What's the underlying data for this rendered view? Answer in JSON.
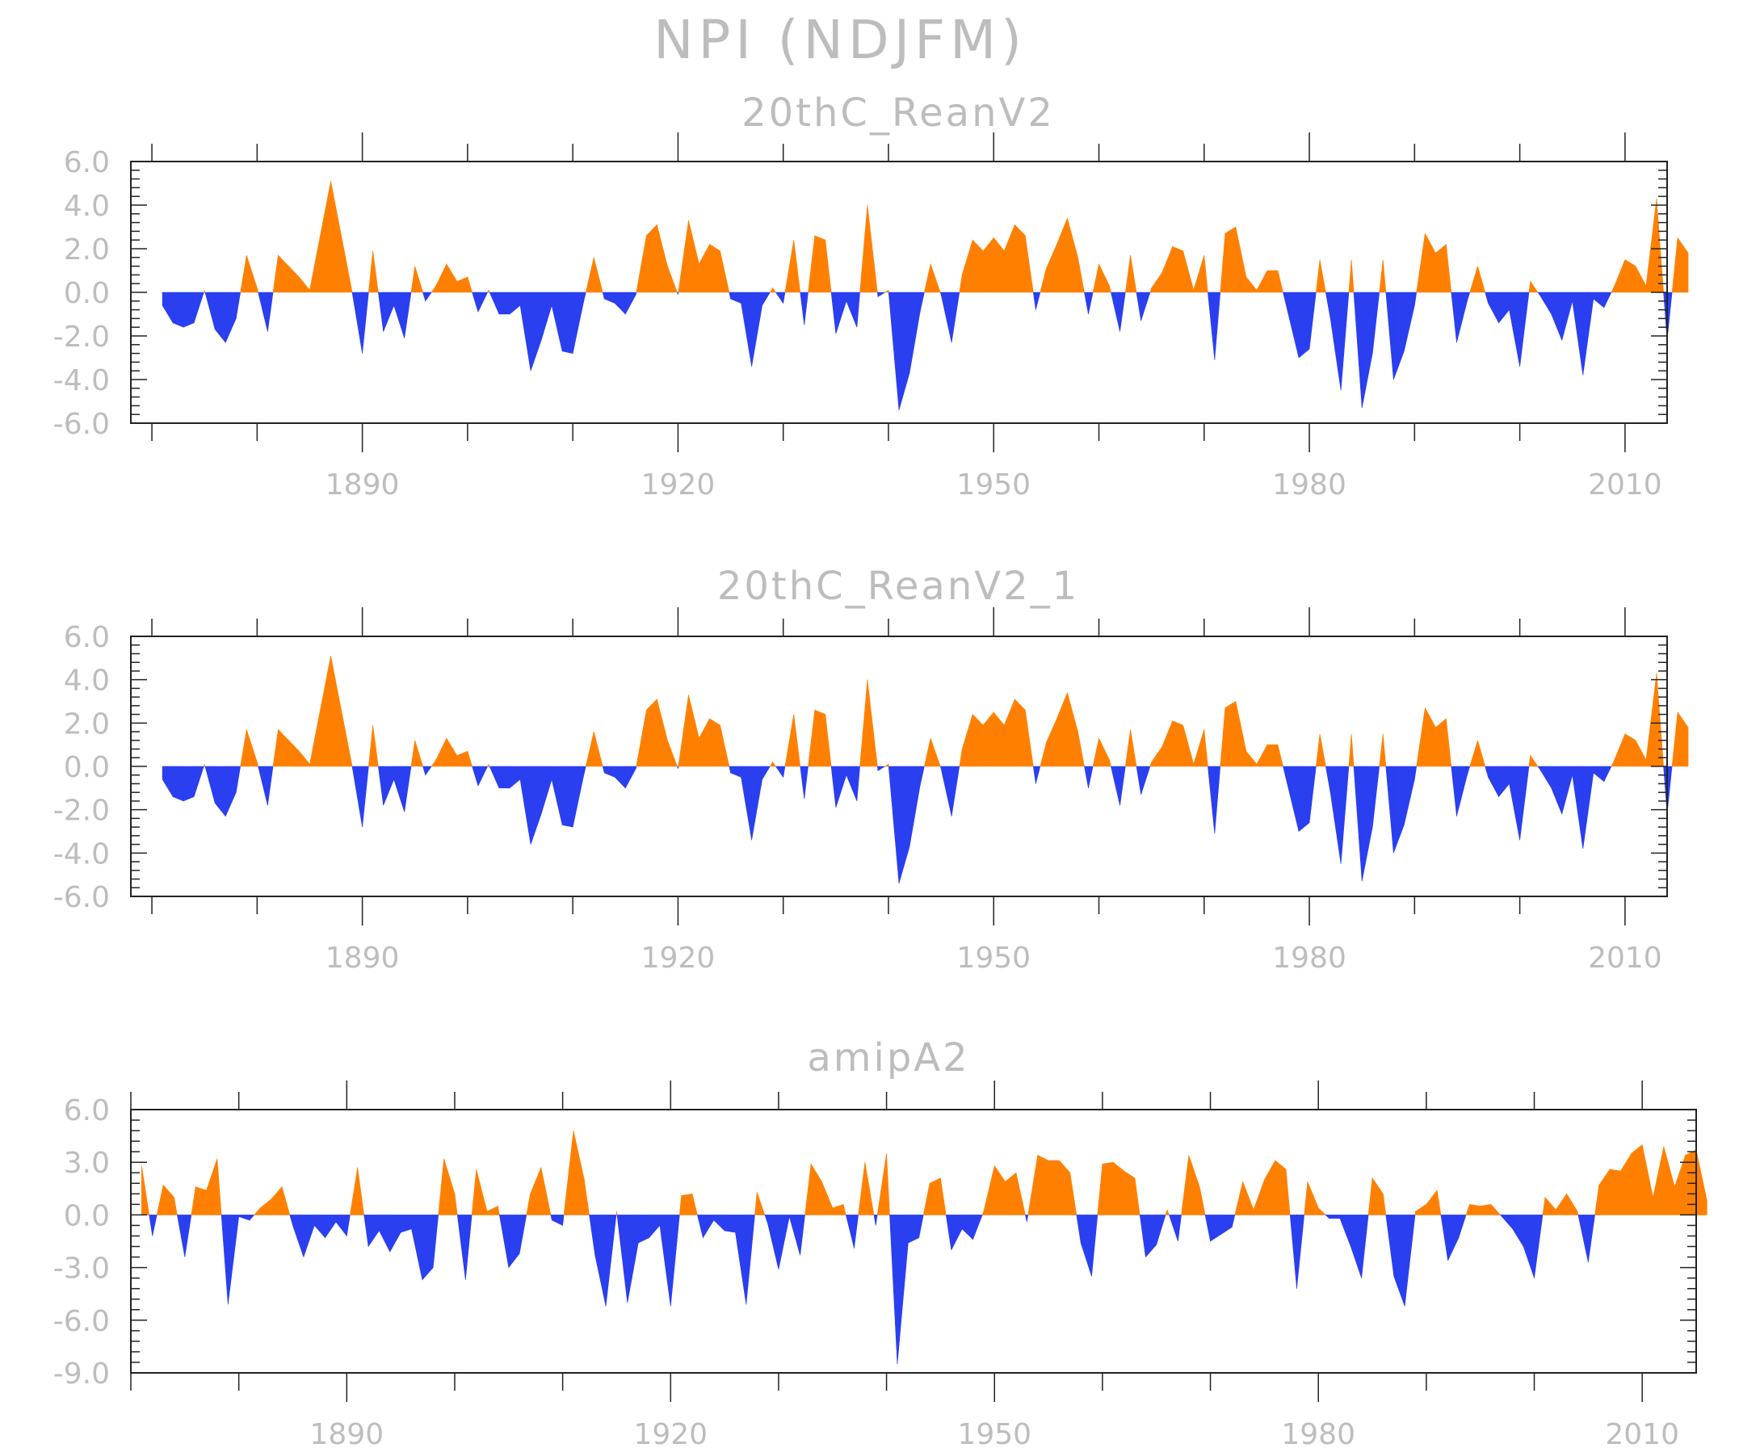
{
  "figure": {
    "title": "NPI (NDJFM)",
    "colors": {
      "positive": "#ff8000",
      "negative": "#2a3ff0",
      "text": "#bdbdbd",
      "axis": "#222222"
    }
  },
  "chart_data": [
    {
      "type": "area",
      "title": "20thC_ReanV2",
      "x_start": 1871,
      "xlim": [
        1868,
        2014
      ],
      "ylim": [
        -6,
        6
      ],
      "y_ticks": [
        6,
        4,
        2,
        0,
        -2,
        -4,
        -6
      ],
      "y_tick_labels": [
        "6.0",
        "4.0",
        "2.0",
        "0.0",
        "-2.0",
        "-4.0",
        "-6.0"
      ],
      "x_ticks": [
        1890,
        1920,
        1950,
        1980,
        2010
      ],
      "x_tick_labels": [
        "1890",
        "1920",
        "1950",
        "1980",
        "2010"
      ],
      "values": [
        -0.6,
        -1.4,
        -1.6,
        -1.4,
        0.1,
        -1.7,
        -2.3,
        -1.2,
        1.7,
        0.2,
        -1.8,
        1.7,
        1.2,
        0.7,
        0.1,
        2.6,
        5.1,
        2.6,
        0.1,
        -2.8,
        1.9,
        -1.8,
        -0.6,
        -2.1,
        1.2,
        -0.4,
        0.3,
        1.3,
        0.5,
        0.7,
        -0.9,
        0.1,
        -1.0,
        -1.0,
        -0.6,
        -3.6,
        -2.2,
        -0.6,
        -2.7,
        -2.8,
        -0.5,
        1.6,
        -0.3,
        -0.5,
        -1.0,
        -0.1,
        2.6,
        3.1,
        1.2,
        -0.1,
        3.3,
        1.3,
        2.2,
        1.9,
        -0.3,
        -0.5,
        -3.4,
        -0.6,
        0.2,
        -0.5,
        2.4,
        -1.5,
        2.6,
        2.4,
        -1.9,
        -0.4,
        -1.6,
        4.0,
        -0.2,
        0.1,
        -5.4,
        -3.7,
        -0.9,
        1.3,
        -0.1,
        -2.3,
        0.8,
        2.4,
        1.9,
        2.5,
        1.9,
        3.1,
        2.6,
        -0.8,
        1.1,
        2.2,
        3.4,
        1.6,
        -1.0,
        1.3,
        0.3,
        -1.8,
        1.7,
        -1.3,
        0.2,
        0.9,
        2.1,
        1.9,
        0.1,
        1.7,
        -3.1,
        2.7,
        3.0,
        0.7,
        0.1,
        1.0,
        1.0,
        -1.0,
        -3.0,
        -2.6,
        1.5,
        -1.2,
        -4.5,
        1.5,
        -5.3,
        -2.8,
        1.5,
        -4.0,
        -2.7,
        -0.6,
        2.7,
        1.8,
        2.2,
        -2.3,
        -0.4,
        1.2,
        -0.5,
        -1.4,
        -0.8,
        -3.4,
        0.5,
        -0.2,
        -1.0,
        -2.2,
        -0.4,
        -3.8,
        -0.3,
        -0.7,
        0.3,
        1.5,
        1.2,
        0.3,
        4.3,
        -2.2,
        2.5,
        1.8
      ]
    },
    {
      "type": "area",
      "title": "20thC_ReanV2_1",
      "x_start": 1871,
      "xlim": [
        1868,
        2014
      ],
      "ylim": [
        -6,
        6
      ],
      "y_ticks": [
        6,
        4,
        2,
        0,
        -2,
        -4,
        -6
      ],
      "y_tick_labels": [
        "6.0",
        "4.0",
        "2.0",
        "0.0",
        "-2.0",
        "-4.0",
        "-6.0"
      ],
      "x_ticks": [
        1890,
        1920,
        1950,
        1980,
        2010
      ],
      "x_tick_labels": [
        "1890",
        "1920",
        "1950",
        "1980",
        "2010"
      ],
      "values": [
        -0.6,
        -1.4,
        -1.6,
        -1.4,
        0.1,
        -1.7,
        -2.3,
        -1.2,
        1.7,
        0.2,
        -1.8,
        1.7,
        1.2,
        0.7,
        0.1,
        2.6,
        5.1,
        2.6,
        0.1,
        -2.8,
        1.9,
        -1.8,
        -0.6,
        -2.1,
        1.2,
        -0.4,
        0.3,
        1.3,
        0.5,
        0.7,
        -0.9,
        0.1,
        -1.0,
        -1.0,
        -0.6,
        -3.6,
        -2.2,
        -0.6,
        -2.7,
        -2.8,
        -0.5,
        1.6,
        -0.3,
        -0.5,
        -1.0,
        -0.1,
        2.6,
        3.1,
        1.2,
        -0.1,
        3.3,
        1.3,
        2.2,
        1.9,
        -0.3,
        -0.5,
        -3.4,
        -0.6,
        0.2,
        -0.5,
        2.4,
        -1.5,
        2.6,
        2.4,
        -1.9,
        -0.4,
        -1.6,
        4.0,
        -0.2,
        0.1,
        -5.4,
        -3.7,
        -0.9,
        1.3,
        -0.1,
        -2.3,
        0.8,
        2.4,
        1.9,
        2.5,
        1.9,
        3.1,
        2.6,
        -0.8,
        1.1,
        2.2,
        3.4,
        1.6,
        -1.0,
        1.3,
        0.3,
        -1.8,
        1.7,
        -1.3,
        0.2,
        0.9,
        2.1,
        1.9,
        0.1,
        1.7,
        -3.1,
        2.7,
        3.0,
        0.7,
        0.1,
        1.0,
        1.0,
        -1.0,
        -3.0,
        -2.6,
        1.5,
        -1.2,
        -4.5,
        1.5,
        -5.3,
        -2.8,
        1.5,
        -4.0,
        -2.7,
        -0.6,
        2.7,
        1.8,
        2.2,
        -2.3,
        -0.4,
        1.2,
        -0.5,
        -1.4,
        -0.8,
        -3.4,
        0.5,
        -0.2,
        -1.0,
        -2.2,
        -0.4,
        -3.8,
        -0.3,
        -0.7,
        0.3,
        1.5,
        1.2,
        0.3,
        4.3,
        -2.2,
        2.5,
        1.8
      ]
    },
    {
      "type": "area",
      "title": "amipA2",
      "x_start": 1871,
      "xlim": [
        1870,
        2015
      ],
      "ylim": [
        -9,
        6
      ],
      "y_ticks": [
        6,
        3,
        0,
        -3,
        -6,
        -9
      ],
      "y_tick_labels": [
        "6.0",
        "3.0",
        "0.0",
        "-3.0",
        "-6.0",
        "-9.0"
      ],
      "x_ticks": [
        1890,
        1920,
        1950,
        1980,
        2010
      ],
      "x_tick_labels": [
        "1890",
        "1920",
        "1950",
        "1980",
        "2010"
      ],
      "values": [
        2.8,
        -1.2,
        1.7,
        1.0,
        -2.4,
        1.6,
        1.4,
        3.2,
        -5.1,
        -0.1,
        -0.3,
        0.4,
        0.9,
        1.6,
        -0.6,
        -2.4,
        -0.6,
        -1.3,
        -0.4,
        -1.2,
        2.7,
        -1.8,
        -0.9,
        -2.1,
        -1.0,
        -0.8,
        -3.7,
        -3.0,
        3.2,
        1.2,
        -3.7,
        2.6,
        0.2,
        0.5,
        -3.0,
        -2.2,
        1.2,
        2.7,
        -0.3,
        -0.6,
        4.8,
        2.0,
        -2.3,
        -5.2,
        0.2,
        -5.0,
        -1.6,
        -1.3,
        -0.6,
        -5.2,
        1.1,
        1.2,
        -1.3,
        -0.3,
        -0.9,
        -1.0,
        -5.1,
        1.3,
        -0.5,
        -3.1,
        -0.1,
        -2.3,
        2.9,
        1.9,
        0.4,
        0.6,
        -1.9,
        3.0,
        -0.6,
        3.5,
        -8.5,
        -1.6,
        -1.3,
        1.8,
        2.1,
        -2.0,
        -0.8,
        -1.4,
        0.2,
        2.8,
        1.9,
        2.4,
        -0.4,
        3.4,
        3.1,
        3.1,
        2.4,
        -1.6,
        -3.5,
        2.9,
        3.0,
        2.5,
        2.1,
        -2.4,
        -1.7,
        0.3,
        -1.5,
        3.4,
        1.6,
        -1.5,
        -1.1,
        -0.7,
        1.9,
        0.3,
        2.0,
        3.1,
        2.6,
        -4.2,
        1.9,
        0.4,
        -0.2,
        -0.2,
        -1.8,
        -3.6,
        2.1,
        1.2,
        -3.5,
        -5.2,
        0.2,
        0.6,
        1.4,
        -2.6,
        -1.3,
        0.6,
        0.5,
        0.6,
        -0.1,
        -0.8,
        -1.8,
        -3.6,
        1.0,
        0.3,
        1.2,
        0.2,
        -2.7,
        1.7,
        2.6,
        2.5,
        3.5,
        4.0,
        1.0,
        3.9,
        1.6,
        3.4,
        3.7,
        0.8
      ]
    }
  ]
}
